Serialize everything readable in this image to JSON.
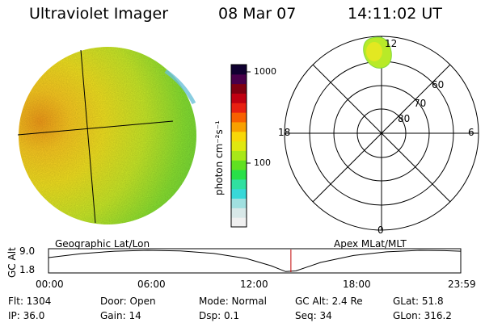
{
  "header": {
    "title": "Ultraviolet Imager",
    "date": "08 Mar 07",
    "time": "14:11:02 UT"
  },
  "colorbar": {
    "unit": "photon cm⁻²s⁻¹",
    "tick_top": "1000",
    "tick_bottom": "100",
    "colors": [
      "#f0f0f0",
      "#d8e8e8",
      "#a0e0e0",
      "#38d8d8",
      "#30e0a0",
      "#28e048",
      "#60e020",
      "#a8e818",
      "#e0e810",
      "#f8d808",
      "#f8a000",
      "#f86000",
      "#e82010",
      "#c00010",
      "#800010",
      "#48004a",
      "#100030"
    ]
  },
  "polar": {
    "lat_labels": [
      "80",
      "70",
      "60"
    ],
    "mlt_labels": {
      "top": "12",
      "left": "18",
      "right": "6",
      "bottom": "0"
    }
  },
  "timeline": {
    "y_axis_label": "GC Alt",
    "y_ticks": [
      "9.0",
      "1.8"
    ],
    "left_caption": "Geographic Lat/Lon",
    "right_caption": "Apex MLat/MLT",
    "x_ticks": [
      "00:00",
      "06:00",
      "12:00",
      "18:00",
      "23:59"
    ],
    "current_time_fraction": 0.588,
    "altitude_curve": [
      {
        "t": 0.0,
        "alt": 6.6
      },
      {
        "t": 0.08,
        "alt": 7.9
      },
      {
        "t": 0.16,
        "alt": 8.7
      },
      {
        "t": 0.24,
        "alt": 9.0
      },
      {
        "t": 0.32,
        "alt": 8.8
      },
      {
        "t": 0.4,
        "alt": 8.0
      },
      {
        "t": 0.48,
        "alt": 6.3
      },
      {
        "t": 0.54,
        "alt": 3.9
      },
      {
        "t": 0.575,
        "alt": 2.0
      },
      {
        "t": 0.6,
        "alt": 2.2
      },
      {
        "t": 0.66,
        "alt": 5.0
      },
      {
        "t": 0.74,
        "alt": 7.3
      },
      {
        "t": 0.82,
        "alt": 8.5
      },
      {
        "t": 0.9,
        "alt": 9.0
      },
      {
        "t": 0.96,
        "alt": 8.9
      },
      {
        "t": 1.0,
        "alt": 8.7
      }
    ]
  },
  "info": {
    "flt": "Flt: 1304",
    "ip": "IP: 36.0",
    "door": "Door: Open",
    "gain": "Gain: 14",
    "mode": "Mode: Normal",
    "dsp": "Dsp:    0.1",
    "gc_alt": "GC Alt: 2.4 Re",
    "seq": "Seq: 34",
    "glat": "GLat:  51.8",
    "glon": "GLon: 316.2"
  }
}
